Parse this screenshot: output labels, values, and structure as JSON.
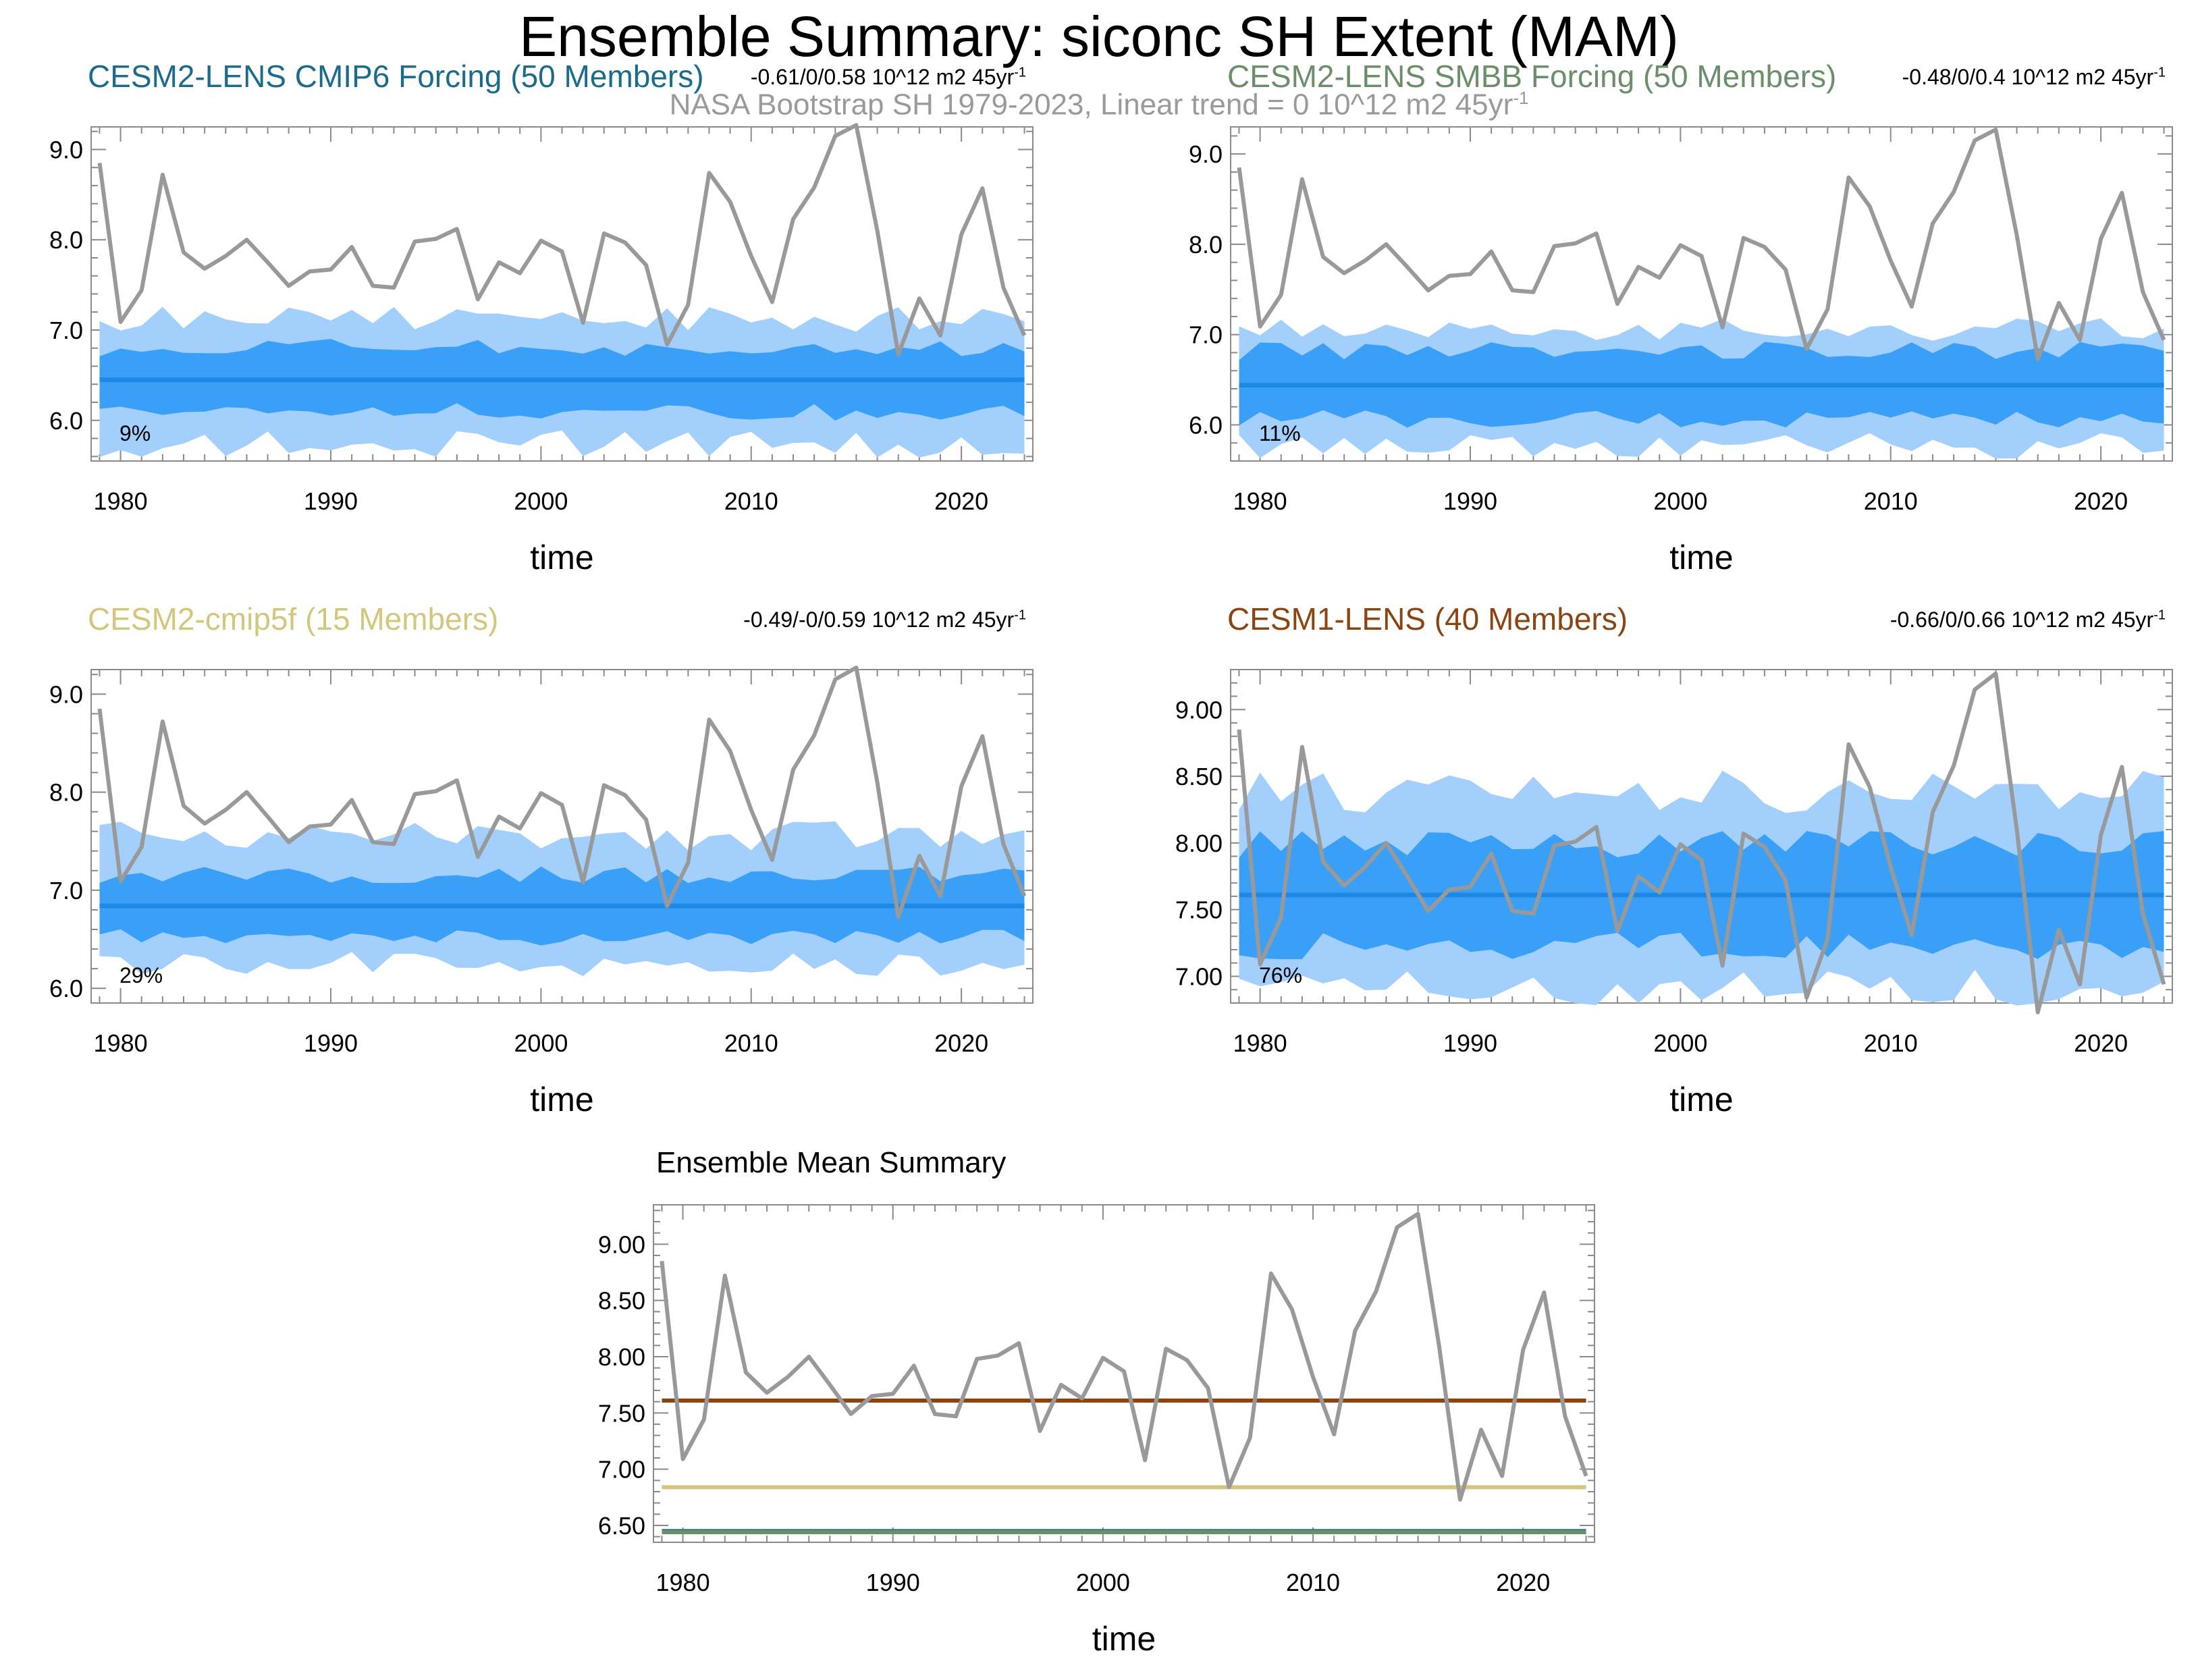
{
  "title": "Ensemble Summary: siconc SH Extent (MAM)",
  "observations": {
    "label": "NASA Bootstrap SH 1979-2023, Linear trend = 0 10^12 m2 45yr",
    "unit_superscript": "-1",
    "years": [
      1979,
      1980,
      1981,
      1982,
      1983,
      1984,
      1985,
      1986,
      1987,
      1988,
      1989,
      1990,
      1991,
      1992,
      1993,
      1994,
      1995,
      1996,
      1997,
      1998,
      1999,
      2000,
      2001,
      2002,
      2003,
      2004,
      2005,
      2006,
      2007,
      2008,
      2009,
      2010,
      2011,
      2012,
      2013,
      2014,
      2015,
      2016,
      2017,
      2018,
      2019,
      2020,
      2021,
      2022,
      2023
    ],
    "values": [
      8.85,
      7.09,
      7.44,
      8.72,
      7.86,
      7.68,
      7.82,
      8.0,
      7.75,
      7.49,
      7.65,
      7.67,
      7.92,
      7.49,
      7.47,
      7.98,
      8.01,
      8.12,
      7.34,
      7.75,
      7.63,
      7.99,
      7.87,
      7.08,
      8.07,
      7.97,
      7.72,
      6.84,
      7.28,
      8.74,
      8.42,
      7.82,
      7.31,
      8.23,
      8.58,
      9.15,
      9.27,
      8.1,
      6.73,
      7.35,
      6.94,
      8.06,
      8.57,
      7.47,
      6.94
    ]
  },
  "colors": {
    "observations": "#999999",
    "ensemble_mean": "#1e88e5",
    "inner_band": "#3aa0f7",
    "outer_band": "#a3cffc",
    "cesm2_lens_cmip6": "#1a6c8a",
    "cesm2_lens_smbb": "#6b8e6b",
    "cesm2_cmip5f": "#d2c77a",
    "cesm1_lens": "#8b4513"
  },
  "panels": [
    {
      "id": "cesm2-lens-cmip6",
      "title": "CESM2-LENS CMIP6 Forcing (50 Members)",
      "title_color": "#1a6c8a",
      "trend_label": "-0.61/0/0.58 10^12 m2 45yr",
      "trend_superscript": "-1",
      "percent_label": "9%",
      "xlabel": "time",
      "y_ticks": [
        "6.0",
        "7.0",
        "8.0",
        "9.0"
      ],
      "x_ticks": [
        "1980",
        "1990",
        "2000",
        "2010",
        "2020"
      ],
      "chart_data": {
        "type": "area",
        "ylim": [
          5.55,
          9.25
        ],
        "xlim": [
          1978.6,
          2023.4
        ],
        "ensemble_mean": 6.45,
        "inner_half_width": 0.36,
        "outer_upper_offset": 0.68,
        "outer_lower_offset": 0.72
      }
    },
    {
      "id": "cesm2-lens-smbb",
      "title": "CESM2-LENS SMBB Forcing (50 Members)",
      "title_color": "#6b8e6b",
      "trend_label": "-0.48/0/0.4 10^12 m2 45yr",
      "trend_superscript": "-1",
      "percent_label": "11%",
      "xlabel": "time",
      "y_ticks": [
        "6.0",
        "7.0",
        "8.0",
        "9.0"
      ],
      "x_ticks": [
        "1980",
        "1990",
        "2000",
        "2010",
        "2020"
      ],
      "chart_data": {
        "type": "area",
        "ylim": [
          5.6,
          9.3
        ],
        "xlim": [
          1978.6,
          2023.4
        ],
        "ensemble_mean": 6.44,
        "inner_half_width": 0.38,
        "outer_upper_offset": 0.62,
        "outer_lower_offset": 0.68
      }
    },
    {
      "id": "cesm2-cmip5f",
      "title": "CESM2-cmip5f (15 Members)",
      "title_color": "#d2c77a",
      "trend_label": "-0.49/-0/0.59 10^12 m2 45yr",
      "trend_superscript": "-1",
      "percent_label": "29%",
      "xlabel": "time",
      "y_ticks": [
        "6.0",
        "7.0",
        "8.0",
        "9.0"
      ],
      "x_ticks": [
        "1980",
        "1990",
        "2000",
        "2010",
        "2020"
      ],
      "chart_data": {
        "type": "area",
        "ylim": [
          5.85,
          9.25
        ],
        "xlim": [
          1978.6,
          2023.4
        ],
        "ensemble_mean": 6.84,
        "inner_half_width": 0.32,
        "outer_upper_offset": 0.72,
        "outer_lower_offset": 0.6
      }
    },
    {
      "id": "cesm1-lens",
      "title": "CESM1-LENS (40 Members)",
      "title_color": "#8b4513",
      "trend_label": "-0.66/0/0.66 10^12 m2 45yr",
      "trend_superscript": "-1",
      "percent_label": "76%",
      "xlabel": "time",
      "y_ticks": [
        "7.00",
        "7.50",
        "8.00",
        "8.50",
        "9.00"
      ],
      "x_ticks": [
        "1980",
        "1990",
        "2000",
        "2010",
        "2020"
      ],
      "chart_data": {
        "type": "area",
        "ylim": [
          6.8,
          9.3
        ],
        "xlim": [
          1978.6,
          2023.4
        ],
        "ensemble_mean": 7.61,
        "inner_half_width": 0.38,
        "outer_upper_offset": 0.78,
        "outer_lower_offset": 0.7
      }
    }
  ],
  "summary": {
    "title": "Ensemble Mean Summary",
    "xlabel": "time",
    "y_ticks": [
      "6.50",
      "7.00",
      "7.50",
      "8.00",
      "8.50",
      "9.00"
    ],
    "x_ticks": [
      "1980",
      "1990",
      "2000",
      "2010",
      "2020"
    ],
    "chart_data": {
      "type": "line",
      "ylim": [
        6.35,
        9.35
      ],
      "xlim": [
        1978.6,
        2023.4
      ],
      "series": [
        {
          "value": 7.61,
          "color": "#8b4513"
        },
        {
          "value": 6.84,
          "color": "#d2c77a"
        },
        {
          "value": 6.45,
          "color": "#1a6c8a"
        },
        {
          "value": 6.44,
          "color": "#6b8e6b"
        }
      ]
    }
  }
}
